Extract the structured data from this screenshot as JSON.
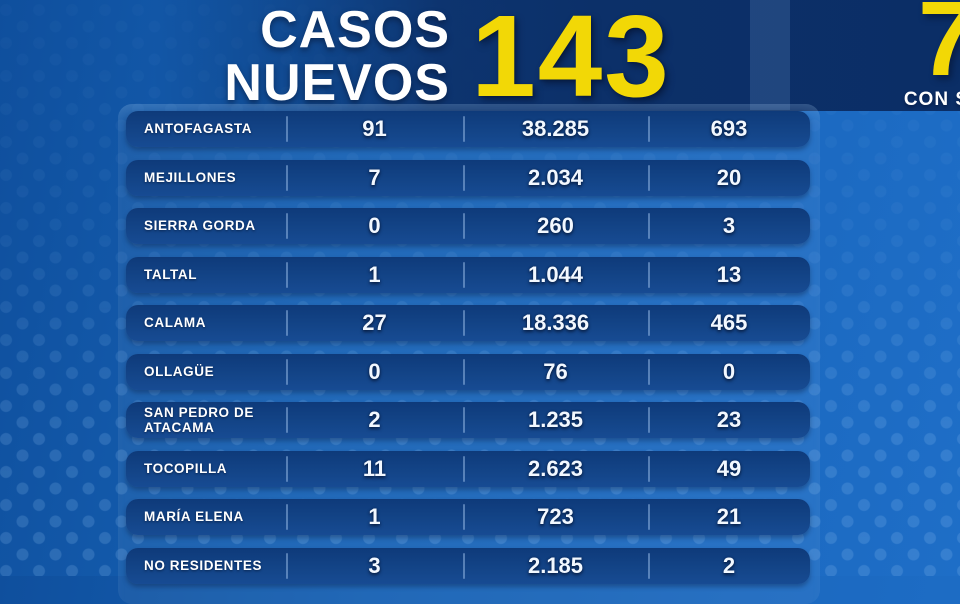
{
  "colors": {
    "background_blue": "#1563b6",
    "panel_navy": "#0c3069",
    "pill_navy": "#113f82",
    "accent_yellow": "#f2d806",
    "text_white": "#ffffff"
  },
  "header": {
    "title_line1": "CASOS",
    "title_line2": "NUEVOS"
  },
  "chart_data": {
    "type": "table",
    "title": "CASOS NUEVOS",
    "headline_value": "143",
    "right_panel": {
      "value": "7",
      "label_partial": "CON S"
    },
    "rows": [
      {
        "name": "ANTOFAGASTA",
        "values": [
          "91",
          "38.285",
          "693"
        ]
      },
      {
        "name": "MEJILLONES",
        "values": [
          "7",
          "2.034",
          "20"
        ]
      },
      {
        "name": "SIERRA GORDA",
        "values": [
          "0",
          "260",
          "3"
        ]
      },
      {
        "name": "TALTAL",
        "values": [
          "1",
          "1.044",
          "13"
        ]
      },
      {
        "name": "CALAMA",
        "values": [
          "27",
          "18.336",
          "465"
        ]
      },
      {
        "name": "OLLAGÜE",
        "values": [
          "0",
          "76",
          "0"
        ]
      },
      {
        "name": "SAN PEDRO DE ATACAMA",
        "values": [
          "2",
          "1.235",
          "23"
        ]
      },
      {
        "name": "TOCOPILLA",
        "values": [
          "11",
          "2.623",
          "49"
        ]
      },
      {
        "name": "MARÍA ELENA",
        "values": [
          "1",
          "723",
          "21"
        ]
      },
      {
        "name": "NO RESIDENTES",
        "values": [
          "3",
          "2.185",
          "2"
        ]
      }
    ]
  }
}
